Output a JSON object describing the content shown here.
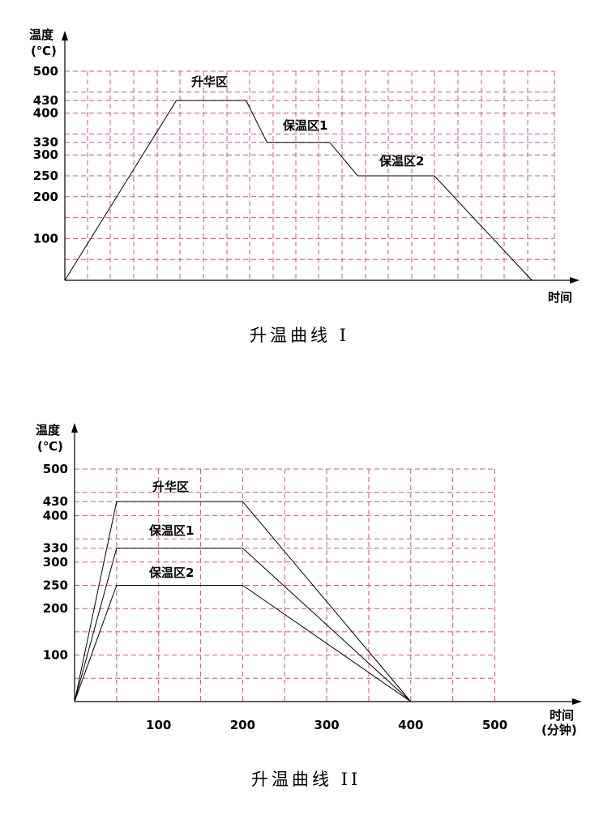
{
  "colors": {
    "grid": "#c2549a",
    "axis": "#000000",
    "curve": "#000000"
  },
  "chart_data": [
    {
      "type": "line",
      "title": "升温曲线 I",
      "ylabel_line1": "温度",
      "ylabel_line2": "(℃)",
      "xlabel_line1": "时间",
      "xlabel_line2": "",
      "ylim": [
        0,
        500
      ],
      "y_ticks": [
        100,
        200,
        250,
        300,
        330,
        400,
        430,
        500
      ],
      "x_ticks": [],
      "grid": true,
      "series": [
        {
          "label": "升华区",
          "points": [
            [
              0,
              0
            ],
            [
              16,
              430
            ],
            [
              26,
              430
            ]
          ]
        },
        {
          "label": "保温区1",
          "points": [
            [
              26,
              430
            ],
            [
              29,
              330
            ],
            [
              38,
              330
            ]
          ]
        },
        {
          "label": "保温区2",
          "points": [
            [
              38,
              330
            ],
            [
              42,
              250
            ],
            [
              53,
              250
            ],
            [
              67,
              0
            ]
          ]
        }
      ]
    },
    {
      "type": "line",
      "title": "升温曲线 II",
      "ylabel_line1": "温度",
      "ylabel_line2": "(℃)",
      "xlabel_line1": "时间",
      "xlabel_line2": "(分钟)",
      "ylim": [
        0,
        500
      ],
      "y_ticks": [
        100,
        200,
        250,
        300,
        330,
        400,
        430,
        500
      ],
      "x_ticks": [
        100,
        200,
        300,
        400,
        500
      ],
      "grid": true,
      "series": [
        {
          "label": "升华区",
          "points": [
            [
              0,
              0
            ],
            [
              50,
              430
            ],
            [
              200,
              430
            ],
            [
              400,
              0
            ]
          ]
        },
        {
          "label": "保温区1",
          "points": [
            [
              0,
              0
            ],
            [
              50,
              330
            ],
            [
              200,
              330
            ],
            [
              400,
              0
            ]
          ]
        },
        {
          "label": "保温区2",
          "points": [
            [
              0,
              0
            ],
            [
              50,
              250
            ],
            [
              200,
              250
            ],
            [
              400,
              0
            ]
          ]
        }
      ]
    }
  ]
}
